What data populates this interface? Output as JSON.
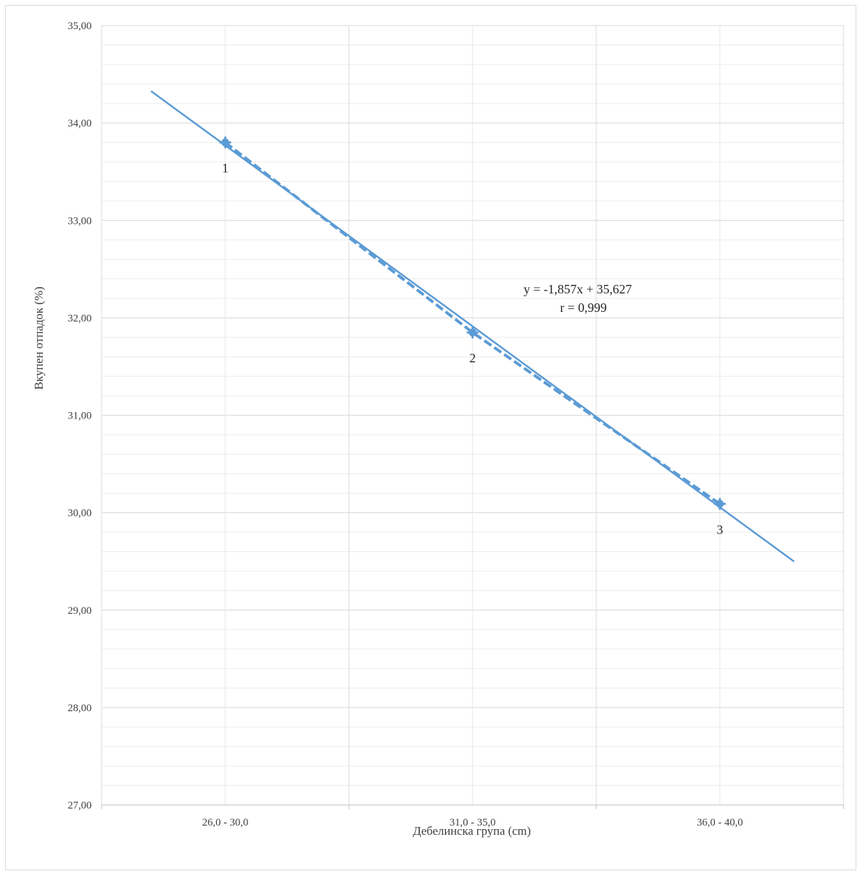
{
  "chart_data": {
    "type": "line",
    "xlabel": "Дебелинска група (cm)",
    "ylabel": "Вкупен отпадок (%)",
    "categories": [
      "26,0 - 30,0",
      "31,0 - 35,0",
      "36,0 - 40,0"
    ],
    "x": [
      1,
      2,
      3
    ],
    "ylim": [
      27,
      35
    ],
    "xlim": [
      0.5,
      3.5
    ],
    "yticks": [
      27,
      28,
      29,
      30,
      31,
      32,
      33,
      34,
      35
    ],
    "ytick_labels": [
      "27,00",
      "28,00",
      "29,00",
      "30,00",
      "31,00",
      "32,00",
      "33,00",
      "34,00",
      "35,00"
    ],
    "grid": true,
    "minor_grid": true,
    "series": [
      {
        "values": [
          33.8,
          31.85,
          30.09
        ],
        "point_labels": [
          "1",
          "2",
          "3"
        ],
        "color": "#5b9bd5",
        "style": "dashed-with-markers"
      }
    ],
    "trendline": {
      "slope": -1.857,
      "intercept": 35.627,
      "x_range": [
        0.7,
        3.3
      ],
      "color": "#5b9bd5",
      "equation_label": "y = -1,857x + 35,627",
      "r_label": "r = 0,999"
    }
  }
}
